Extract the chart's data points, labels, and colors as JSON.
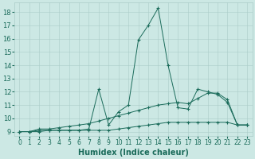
{
  "xlabel": "Humidex (Indice chaleur)",
  "xlim": [
    -0.5,
    23.5
  ],
  "ylim": [
    8.7,
    18.7
  ],
  "yticks": [
    9,
    10,
    11,
    12,
    13,
    14,
    15,
    16,
    17,
    18
  ],
  "xticks": [
    0,
    1,
    2,
    3,
    4,
    5,
    6,
    7,
    8,
    9,
    10,
    11,
    12,
    13,
    14,
    15,
    16,
    17,
    18,
    19,
    20,
    21,
    22,
    23
  ],
  "line1_x": [
    0,
    1,
    2,
    3,
    4,
    5,
    6,
    7,
    8,
    9,
    10,
    11,
    12,
    13,
    14,
    15,
    16,
    17,
    18,
    19,
    20,
    21,
    22,
    23
  ],
  "line1_y": [
    9.0,
    9.0,
    9.0,
    9.1,
    9.1,
    9.1,
    9.1,
    9.1,
    9.1,
    9.1,
    9.2,
    9.3,
    9.4,
    9.5,
    9.6,
    9.7,
    9.7,
    9.7,
    9.7,
    9.7,
    9.7,
    9.7,
    9.5,
    9.5
  ],
  "line2_x": [
    0,
    1,
    2,
    3,
    4,
    5,
    6,
    7,
    8,
    9,
    10,
    11,
    12,
    13,
    14,
    15,
    16,
    17,
    18,
    19,
    20,
    21,
    22,
    23
  ],
  "line2_y": [
    9.0,
    9.0,
    9.2,
    9.2,
    9.3,
    9.4,
    9.5,
    9.6,
    9.8,
    10.0,
    10.2,
    10.4,
    10.6,
    10.8,
    11.0,
    11.1,
    11.2,
    11.1,
    11.5,
    11.9,
    11.9,
    11.4,
    9.5,
    9.5
  ],
  "line3_x": [
    0,
    1,
    2,
    3,
    4,
    5,
    6,
    7,
    8,
    9,
    10,
    11,
    12,
    13,
    14,
    15,
    16,
    17,
    18,
    19,
    20,
    21,
    22,
    23
  ],
  "line3_y": [
    9.0,
    9.0,
    9.1,
    9.1,
    9.1,
    9.1,
    9.1,
    9.2,
    12.2,
    9.5,
    10.5,
    11.0,
    15.9,
    17.0,
    18.3,
    14.0,
    10.8,
    10.7,
    12.2,
    12.0,
    11.8,
    11.2,
    9.5,
    9.5
  ],
  "line_color": "#1a6b5a",
  "bg_color": "#cce8e4",
  "grid_color": "#aaccc8",
  "marker": "+",
  "marker_size": 3,
  "linewidth": 0.7
}
